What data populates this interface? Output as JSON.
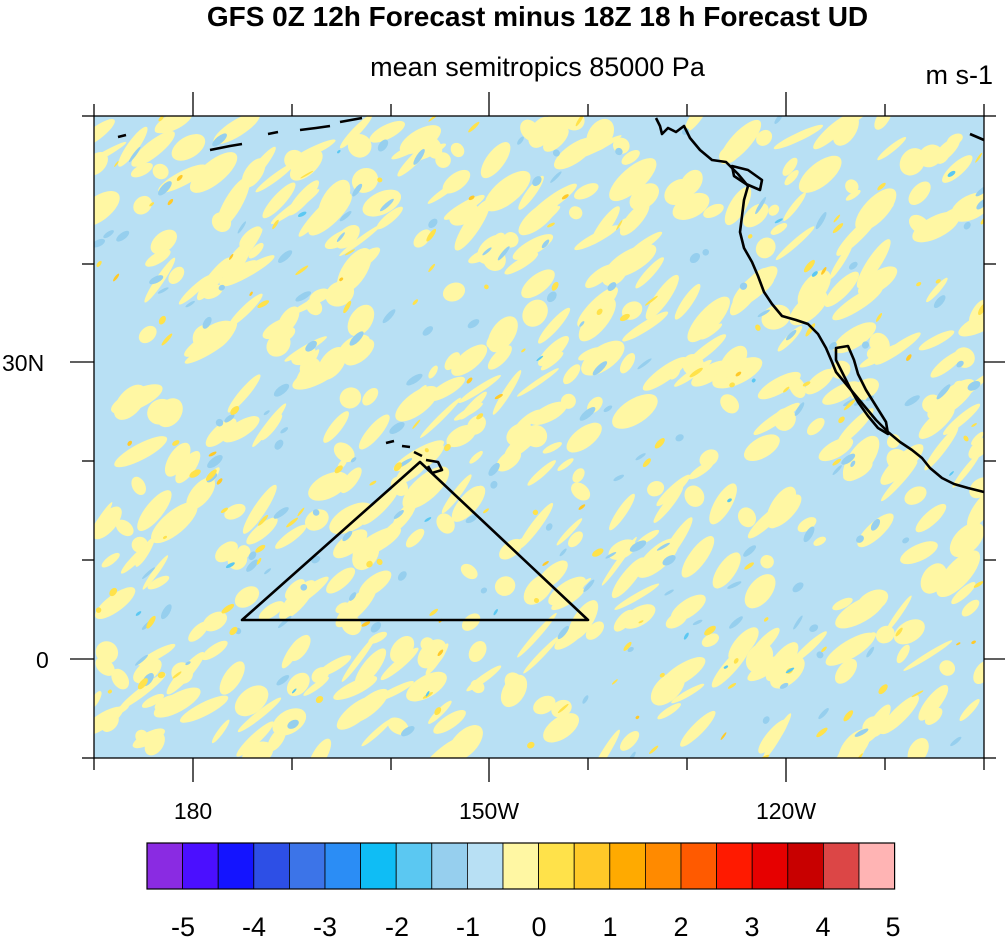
{
  "title": "GFS 0Z 12h Forecast minus 18Z 18 h Forecast UD",
  "subtitle": "mean semitropics 85000 Pa",
  "units": "m s-1",
  "y_tick_labels": [
    "30N",
    "0"
  ],
  "x_tick_labels": [
    "180",
    "150W",
    "120W"
  ],
  "colorbar": {
    "labels": [
      "-5",
      "-4",
      "-3",
      "-2",
      "-1",
      "0",
      "1",
      "2",
      "3",
      "4",
      "5"
    ],
    "colors": [
      "#8a2be2",
      "#4b0fff",
      "#1414ff",
      "#2d4fe6",
      "#3c74e8",
      "#2b8df5",
      "#0fbdf5",
      "#5bc8f2",
      "#96cfee",
      "#b8e0f4",
      "#fff7a3",
      "#ffe24a",
      "#ffc928",
      "#ffaa00",
      "#ff8a00",
      "#ff5a00",
      "#ff1a00",
      "#e60000",
      "#c80000",
      "#dc4646",
      "#ffb4b4"
    ]
  },
  "map_colors": {
    "background": "#b8e0f4",
    "positive_light": "#fff7a3",
    "positive_mid": "#ffe24a",
    "positive_strong": "#ffc928",
    "negative_mid": "#96cfee",
    "negative_strong": "#5bc8f2",
    "coastline": "#000000"
  }
}
